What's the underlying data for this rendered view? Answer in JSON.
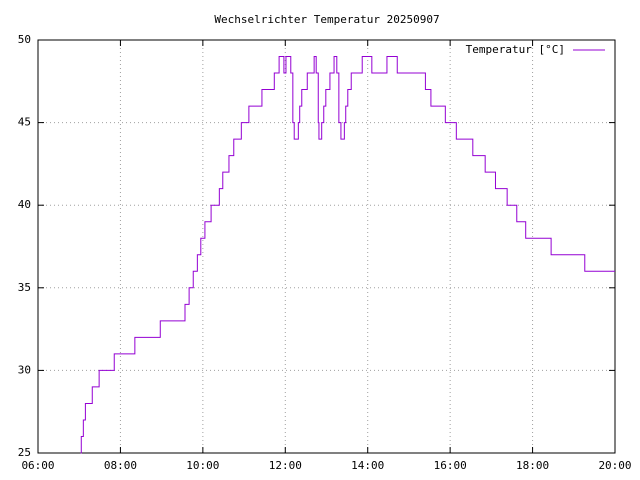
{
  "chart_data": {
    "type": "line",
    "title": "Wechselrichter Temperatur 20250907",
    "x": [
      "07:02",
      "07:03",
      "07:06",
      "07:09",
      "07:19",
      "07:29",
      "07:51",
      "08:21",
      "08:58",
      "09:34",
      "09:40",
      "09:46",
      "09:52",
      "09:57",
      "10:03",
      "10:12",
      "10:24",
      "10:29",
      "10:38",
      "10:45",
      "10:56",
      "11:07",
      "11:26",
      "11:44",
      "11:51",
      "11:58",
      "12:01",
      "12:08",
      "12:11",
      "12:13",
      "12:19",
      "12:21",
      "12:24",
      "12:32",
      "12:42",
      "12:45",
      "12:48",
      "12:49",
      "12:53",
      "12:56",
      "12:59",
      "13:05",
      "13:11",
      "13:15",
      "13:18",
      "13:21",
      "13:26",
      "13:28",
      "13:31",
      "13:36",
      "13:52",
      "14:06",
      "14:28",
      "14:43",
      "15:24",
      "15:32",
      "15:53",
      "16:09",
      "16:33",
      "16:51",
      "17:06",
      "17:23",
      "17:37",
      "17:50",
      "18:27",
      "19:16",
      "20:00"
    ],
    "series": [
      {
        "name": "Temperatur [°C]",
        "color": "#9400d3",
        "values": [
          25,
          26,
          27,
          28,
          29,
          30,
          31,
          32,
          33,
          34,
          35,
          36,
          37,
          38,
          39,
          40,
          41,
          42,
          43,
          44,
          45,
          46,
          47,
          48,
          49,
          48,
          49,
          48,
          45,
          44,
          45,
          46,
          47,
          48,
          49,
          48,
          45,
          44,
          45,
          46,
          47,
          48,
          49,
          48,
          45,
          44,
          45,
          46,
          47,
          48,
          49,
          48,
          49,
          48,
          47,
          46,
          45,
          44,
          43,
          42,
          41,
          40,
          39,
          38,
          37,
          36,
          36
        ]
      }
    ],
    "xlim": [
      "06:00",
      "20:00"
    ],
    "xticks": [
      "06:00",
      "08:00",
      "10:00",
      "12:00",
      "14:00",
      "16:00",
      "18:00",
      "20:00"
    ],
    "ylim": [
      25,
      50
    ],
    "yticks": [
      25,
      30,
      35,
      40,
      45,
      50
    ],
    "grid": true,
    "legend": "top-right"
  }
}
